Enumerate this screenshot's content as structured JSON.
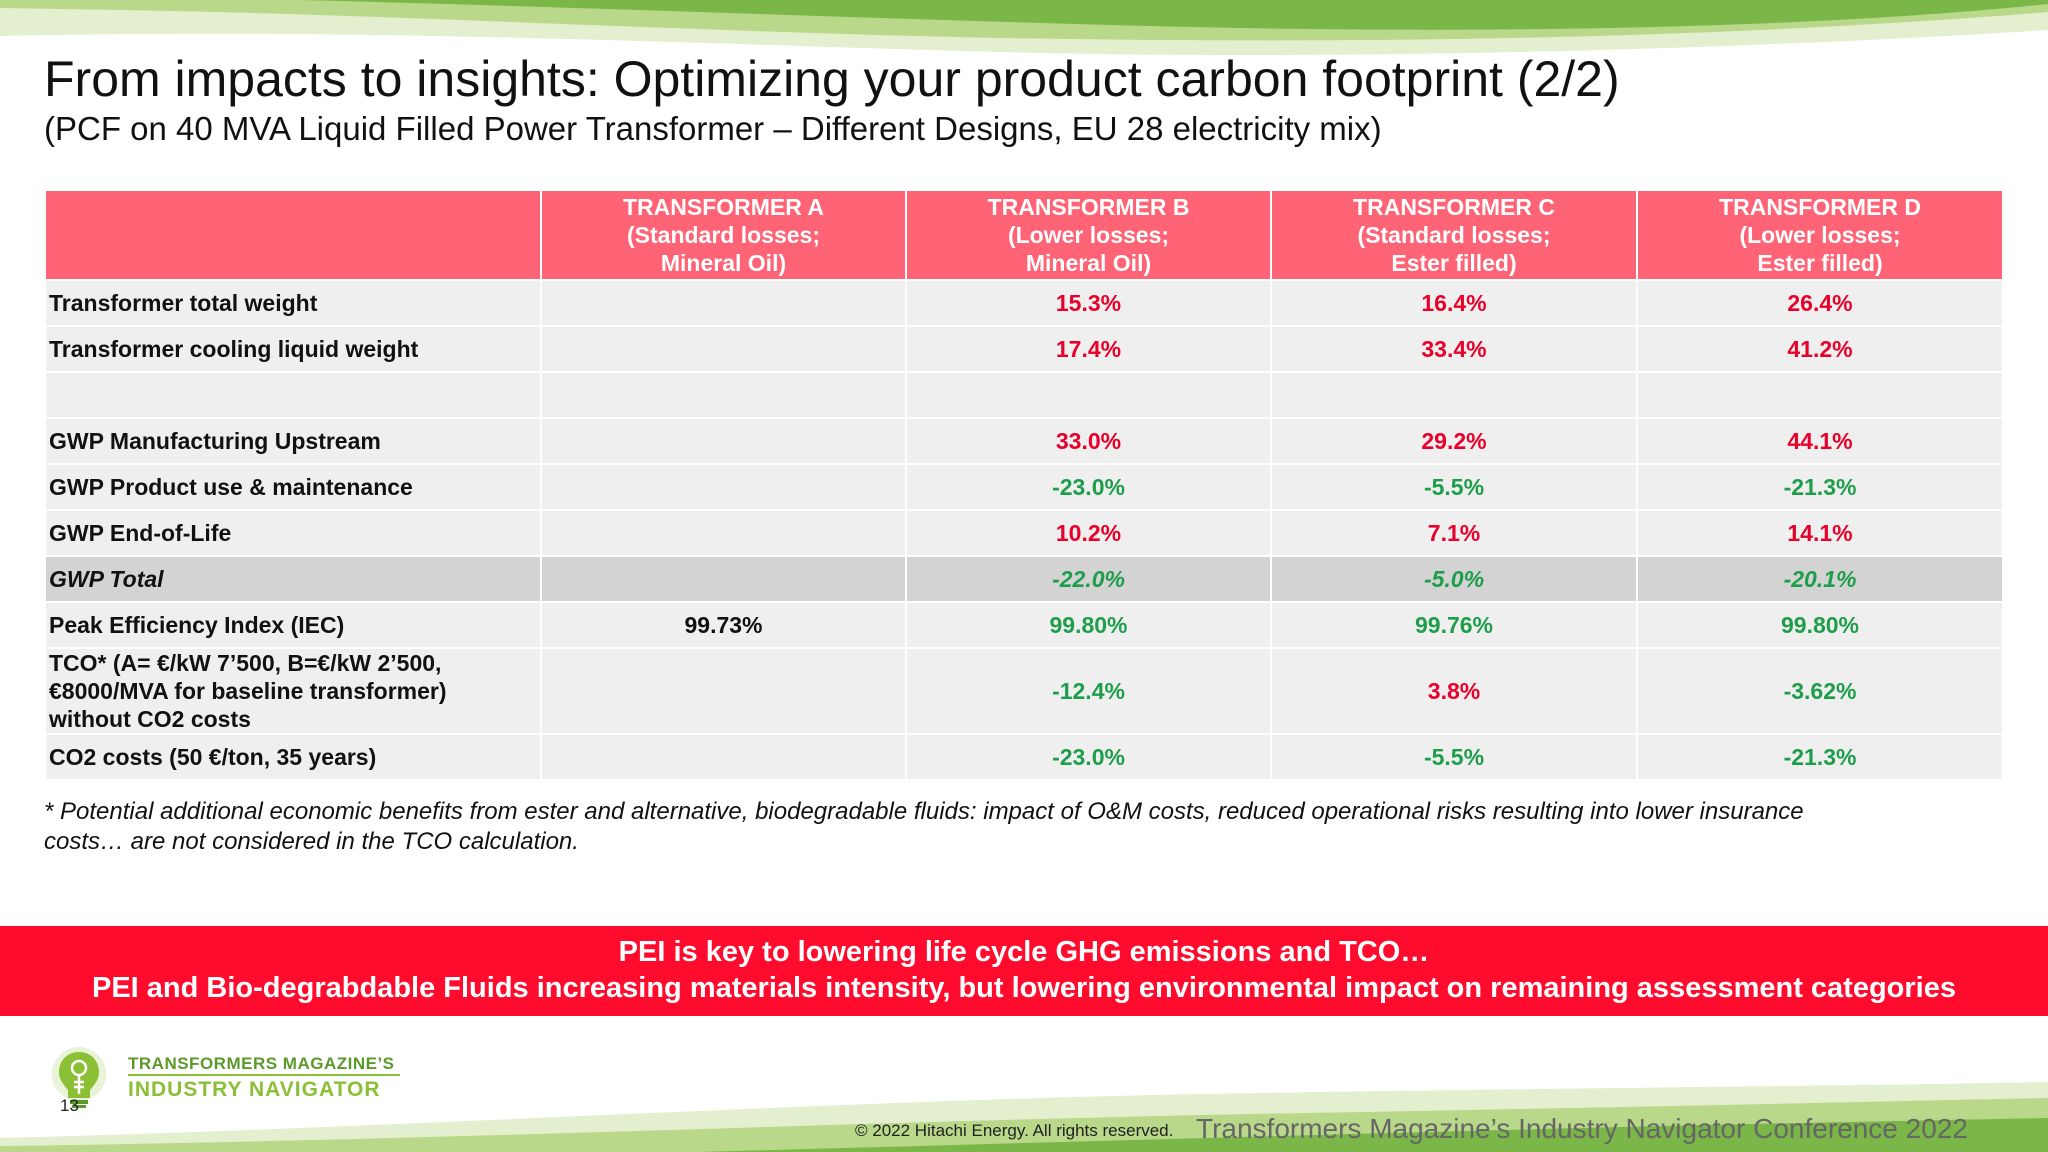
{
  "slide": {
    "title": "From impacts to insights: Optimizing your product carbon footprint (2/2)",
    "subtitle": "(PCF on 40 MVA Liquid Filled Power Transformer – Different Designs, EU 28 electricity mix)"
  },
  "table": {
    "headers": [
      {
        "line1": "TRANSFORMER A",
        "line2": "(Standard losses;",
        "line3": "Mineral Oil)"
      },
      {
        "line1": "TRANSFORMER B",
        "line2": "(Lower losses;",
        "line3": "Mineral Oil)"
      },
      {
        "line1": "TRANSFORMER C",
        "line2": "(Standard losses;",
        "line3": "Ester filled)"
      },
      {
        "line1": "TRANSFORMER D",
        "line2": "(Lower losses;",
        "line3": "Ester filled)"
      }
    ],
    "rows": {
      "total_weight": {
        "label": "Transformer total weight",
        "a": "",
        "b": "15.3%",
        "c": "16.4%",
        "d": "26.4%"
      },
      "liquid_weight": {
        "label": "Transformer cooling liquid weight",
        "a": "",
        "b": "17.4%",
        "c": "33.4%",
        "d": "41.2%"
      },
      "gwp_upstream": {
        "label": "GWP Manufacturing Upstream",
        "a": "",
        "b": "33.0%",
        "c": "29.2%",
        "d": "44.1%"
      },
      "gwp_use": {
        "label": "GWP Product use & maintenance",
        "a": "",
        "b": "-23.0%",
        "c": "-5.5%",
        "d": "-21.3%"
      },
      "gwp_eol": {
        "label": "GWP End-of-Life",
        "a": "",
        "b": "10.2%",
        "c": "7.1%",
        "d": "14.1%"
      },
      "gwp_total": {
        "label": "GWP Total",
        "a": "",
        "b": "-22.0%",
        "c": "-5.0%",
        "d": "-20.1%"
      },
      "pei": {
        "label": "Peak Efficiency Index (IEC)",
        "a": "99.73%",
        "b": "99.80%",
        "c": "99.76%",
        "d": "99.80%"
      },
      "tco": {
        "label_line1": "TCO* (A= €/kW 7’500, B=€/kW 2’500,",
        "label_line2": "€8000/MVA for baseline transformer)",
        "label_line3": "without CO2 costs",
        "a": "",
        "b": "-12.4%",
        "c": "3.8%",
        "d": "-3.62%"
      },
      "co2": {
        "label": "CO2 costs (50 €/ton, 35 years)",
        "a": "",
        "b": "-23.0%",
        "c": "-5.5%",
        "d": "-21.3%"
      }
    }
  },
  "footnote": {
    "line1": "* Potential additional economic benefits from ester and alternative, biodegradable fluids: impact of O&M costs, reduced operational risks resulting into lower insurance",
    "line2": "costs… are not considered in the TCO calculation."
  },
  "banner": {
    "line1": "PEI is key to lowering life cycle GHG emissions and TCO…",
    "line2": "PEI and Bio-degrabdable Fluids increasing materials intensity, but lowering environmental impact on remaining assessment categories"
  },
  "footer": {
    "logo_line1": "TRANSFORMERS MAGAZINE’S",
    "logo_line2": "INDUSTRY NAVIGATOR",
    "page_number": "13",
    "copyright": "© 2022 Hitachi Energy. All rights reserved.",
    "conference": "Transformers Magazine’s Industry Navigator Conference 2022"
  },
  "colors": {
    "header_pink": "#ff6476",
    "banner_red": "#ff0b2d",
    "increase_red": "#e8002a",
    "decrease_green": "#1e9e4a",
    "wave_green": "#7ab648"
  }
}
